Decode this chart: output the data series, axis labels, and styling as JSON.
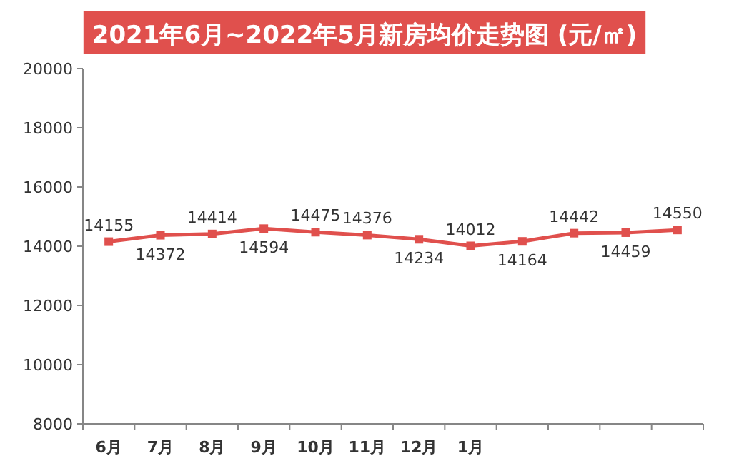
{
  "chart_data": {
    "type": "line",
    "title": "2021年6月~2022年5月新房均价走势图 (元/㎡)",
    "categories": [
      "6月",
      "7月",
      "8月",
      "9月",
      "10月",
      "11月",
      "12月",
      "1月",
      null,
      null,
      null,
      null
    ],
    "series": [
      {
        "color": "#e0504d",
        "values": [
          14155,
          14372,
          14414,
          14594,
          14475,
          14376,
          14234,
          14012,
          14164,
          14442,
          14459,
          14550
        ]
      }
    ],
    "ylim": [
      8000,
      20000
    ],
    "yticks": [
      8000,
      10000,
      12000,
      14000,
      16000,
      18000,
      20000
    ],
    "marker": "square",
    "data_labels": true,
    "grid": false
  }
}
